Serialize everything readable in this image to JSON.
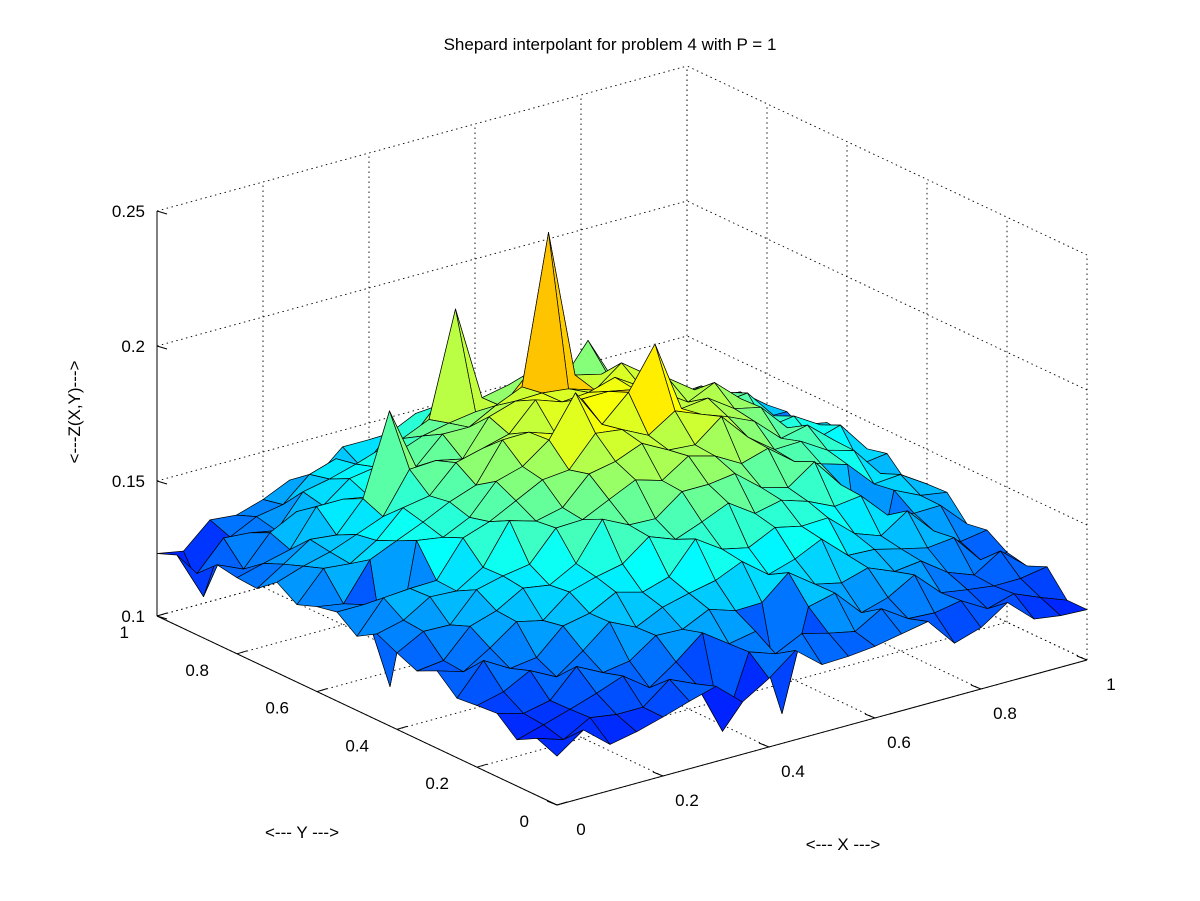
{
  "chart_data": {
    "type": "surface",
    "title": "Shepard interpolant for problem 4 with P = 1",
    "xlabel": "<--- X --->",
    "ylabel": "<--- Y --->",
    "zlabel": "<---Z(X,Y)--->",
    "xlim": [
      0,
      1
    ],
    "ylim": [
      0,
      1
    ],
    "zlim": [
      0.1,
      0.25
    ],
    "x_ticks": [
      0,
      0.2,
      0.4,
      0.6,
      0.8,
      1
    ],
    "x_tick_labels": [
      "0",
      "0.2",
      "0.4",
      "0.6",
      "0.8",
      "1"
    ],
    "y_ticks": [
      0,
      0.2,
      0.4,
      0.6,
      0.8,
      1
    ],
    "y_tick_labels": [
      "0",
      "0.2",
      "0.4",
      "0.6",
      "0.8",
      "1"
    ],
    "z_ticks": [
      0.1,
      0.15,
      0.2,
      0.25
    ],
    "z_tick_labels": [
      "0.1",
      "0.15",
      "0.2",
      "0.25"
    ],
    "grid": true,
    "colormap": "jet",
    "grid_size": 21,
    "surface_model": {
      "base": 0.115,
      "dome_amplitude": 0.065,
      "dome_center": [
        0.55,
        0.6
      ],
      "dome_width": 0.33,
      "peaks": [
        {
          "x": 0.55,
          "y": 0.75,
          "z": 0.23
        },
        {
          "x": 0.6,
          "y": 0.55,
          "z": 0.2
        },
        {
          "x": 0.45,
          "y": 0.85,
          "z": 0.2
        },
        {
          "x": 0.45,
          "y": 0.55,
          "z": 0.19
        },
        {
          "x": 0.25,
          "y": 0.75,
          "z": 0.18
        },
        {
          "x": 0.7,
          "y": 0.85,
          "z": 0.175
        }
      ],
      "dips": [
        {
          "x": 0.5,
          "y": 0.1,
          "z": 0.1
        },
        {
          "x": 0.05,
          "y": 0.95,
          "z": 0.108
        },
        {
          "x": 0.35,
          "y": 0.05,
          "z": 0.105
        },
        {
          "x": 0.95,
          "y": 0.7,
          "z": 0.108
        },
        {
          "x": 0.1,
          "y": 0.55,
          "z": 0.1
        },
        {
          "x": 0.85,
          "y": 0.35,
          "z": 0.1
        }
      ]
    }
  }
}
